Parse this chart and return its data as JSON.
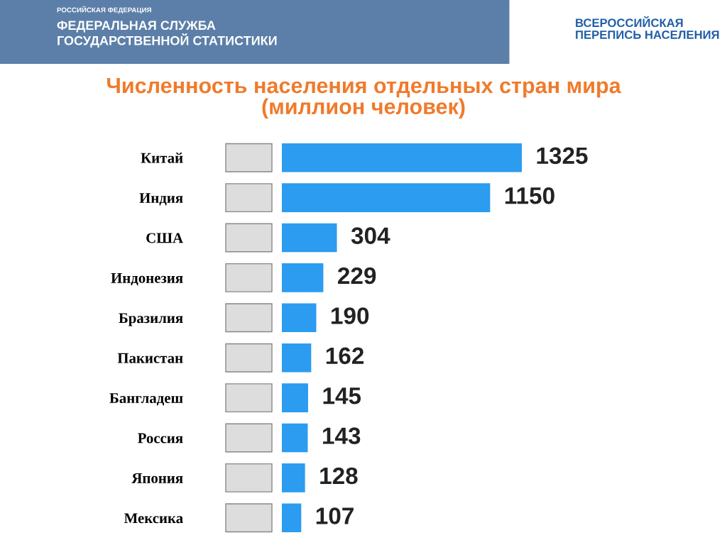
{
  "chart_data": {
    "type": "bar",
    "orientation": "horizontal",
    "title": "Численность населения отдельных стран мира\n(миллион человек)",
    "categories": [
      "Китай",
      "Индия",
      "США",
      "Индонезия",
      "Бразилия",
      "Пакистан",
      "Бангладеш",
      "Россия",
      "Япония",
      "Мексика"
    ],
    "values": [
      1325,
      1150,
      304,
      229,
      190,
      162,
      145,
      143,
      128,
      107
    ],
    "color": "#2b9cf0",
    "data_labels": true,
    "tick_labels": "y",
    "grid": false,
    "legend": false,
    "annotations": [
      "РОССИЙСКАЯ ФЕДЕРАЦИЯ",
      "ФЕДЕРАЛЬНАЯ СЛУЖБА\nГОСУДАРСТВЕННОЙ СТАТИСТИКИ",
      "ВСЕРОССИЙСКАЯ\nПЕРЕПИСЬ НАСЕЛЕНИЯ"
    ]
  }
}
